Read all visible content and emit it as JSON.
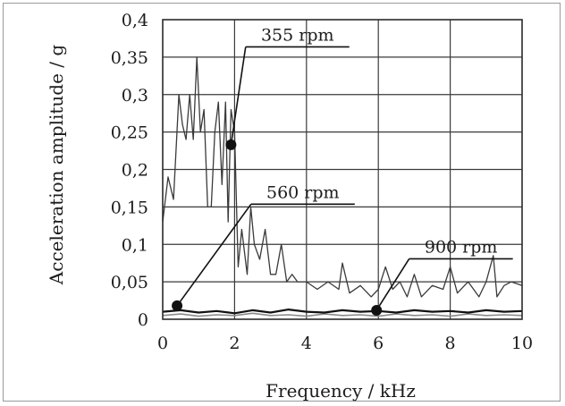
{
  "chart_data": {
    "type": "line",
    "title": "",
    "xlabel": "Frequency / kHz",
    "ylabel": "Acceleration amplitude / g",
    "xlim": [
      0,
      10
    ],
    "ylim": [
      0,
      0.4
    ],
    "grid": true,
    "x_ticks": [
      "0",
      "2",
      "4",
      "6",
      "8",
      "10"
    ],
    "y_ticks": [
      "0",
      "0,05",
      "0,1",
      "0,15",
      "0,2",
      "0,25",
      "0,3",
      "0,35",
      "0,4"
    ],
    "series": [
      {
        "name": "355 rpm",
        "color": "#3a3a3a",
        "x": [
          0,
          0.15,
          0.3,
          0.45,
          0.55,
          0.65,
          0.75,
          0.85,
          0.95,
          1.05,
          1.15,
          1.25,
          1.35,
          1.45,
          1.55,
          1.65,
          1.75,
          1.82,
          1.9,
          2.0,
          2.1,
          2.2,
          2.35,
          2.45,
          2.55,
          2.7,
          2.85,
          3.0,
          3.15,
          3.3,
          3.45,
          3.6,
          3.75,
          3.9,
          4.0,
          4.3,
          4.6,
          4.9,
          5.0,
          5.2,
          5.5,
          5.8,
          6.0,
          6.2,
          6.4,
          6.6,
          6.8,
          7.0,
          7.2,
          7.5,
          7.8,
          8.0,
          8.2,
          8.5,
          8.8,
          9.0,
          9.2,
          9.3,
          9.5,
          9.7,
          10.0
        ],
        "values": [
          0.13,
          0.19,
          0.16,
          0.3,
          0.26,
          0.24,
          0.3,
          0.24,
          0.35,
          0.25,
          0.28,
          0.15,
          0.15,
          0.25,
          0.29,
          0.18,
          0.29,
          0.13,
          0.28,
          0.25,
          0.07,
          0.12,
          0.06,
          0.15,
          0.1,
          0.08,
          0.12,
          0.06,
          0.06,
          0.1,
          0.05,
          0.06,
          0.05,
          0.05,
          0.05,
          0.04,
          0.05,
          0.04,
          0.075,
          0.035,
          0.045,
          0.03,
          0.04,
          0.07,
          0.04,
          0.05,
          0.03,
          0.06,
          0.03,
          0.045,
          0.04,
          0.07,
          0.035,
          0.05,
          0.03,
          0.05,
          0.085,
          0.03,
          0.045,
          0.05,
          0.045
        ]
      },
      {
        "name": "560 rpm",
        "color": "#111111",
        "x": [
          0,
          0.5,
          1,
          1.5,
          2,
          2.5,
          3,
          3.5,
          4,
          4.5,
          5,
          5.5,
          6,
          6.5,
          7,
          7.5,
          8,
          8.5,
          9,
          9.5,
          10
        ],
        "values": [
          0.01,
          0.012,
          0.009,
          0.011,
          0.008,
          0.012,
          0.009,
          0.013,
          0.01,
          0.009,
          0.012,
          0.01,
          0.011,
          0.009,
          0.012,
          0.01,
          0.011,
          0.009,
          0.012,
          0.01,
          0.011
        ]
      },
      {
        "name": "900 rpm",
        "color": "#8a8a8a",
        "x": [
          0,
          0.5,
          1,
          1.5,
          2,
          2.5,
          3,
          3.5,
          4,
          4.5,
          5,
          5.5,
          6,
          6.5,
          7,
          7.5,
          8,
          8.5,
          9,
          9.5,
          10
        ],
        "values": [
          0.005,
          0.007,
          0.004,
          0.006,
          0.005,
          0.008,
          0.005,
          0.006,
          0.004,
          0.007,
          0.005,
          0.006,
          0.004,
          0.007,
          0.005,
          0.006,
          0.004,
          0.007,
          0.005,
          0.006,
          0.005
        ]
      }
    ],
    "annotations": [
      {
        "label": "355 rpm",
        "marker_x": 1.9,
        "marker_y": 0.233,
        "label_x": 3.75,
        "label_y": 0.372
      },
      {
        "label": "560 rpm",
        "marker_x": 0.4,
        "marker_y": 0.018,
        "label_x": 3.9,
        "label_y": 0.162
      },
      {
        "label": "900 rpm",
        "marker_x": 5.95,
        "marker_y": 0.012,
        "label_x": 8.3,
        "label_y": 0.089
      }
    ]
  }
}
